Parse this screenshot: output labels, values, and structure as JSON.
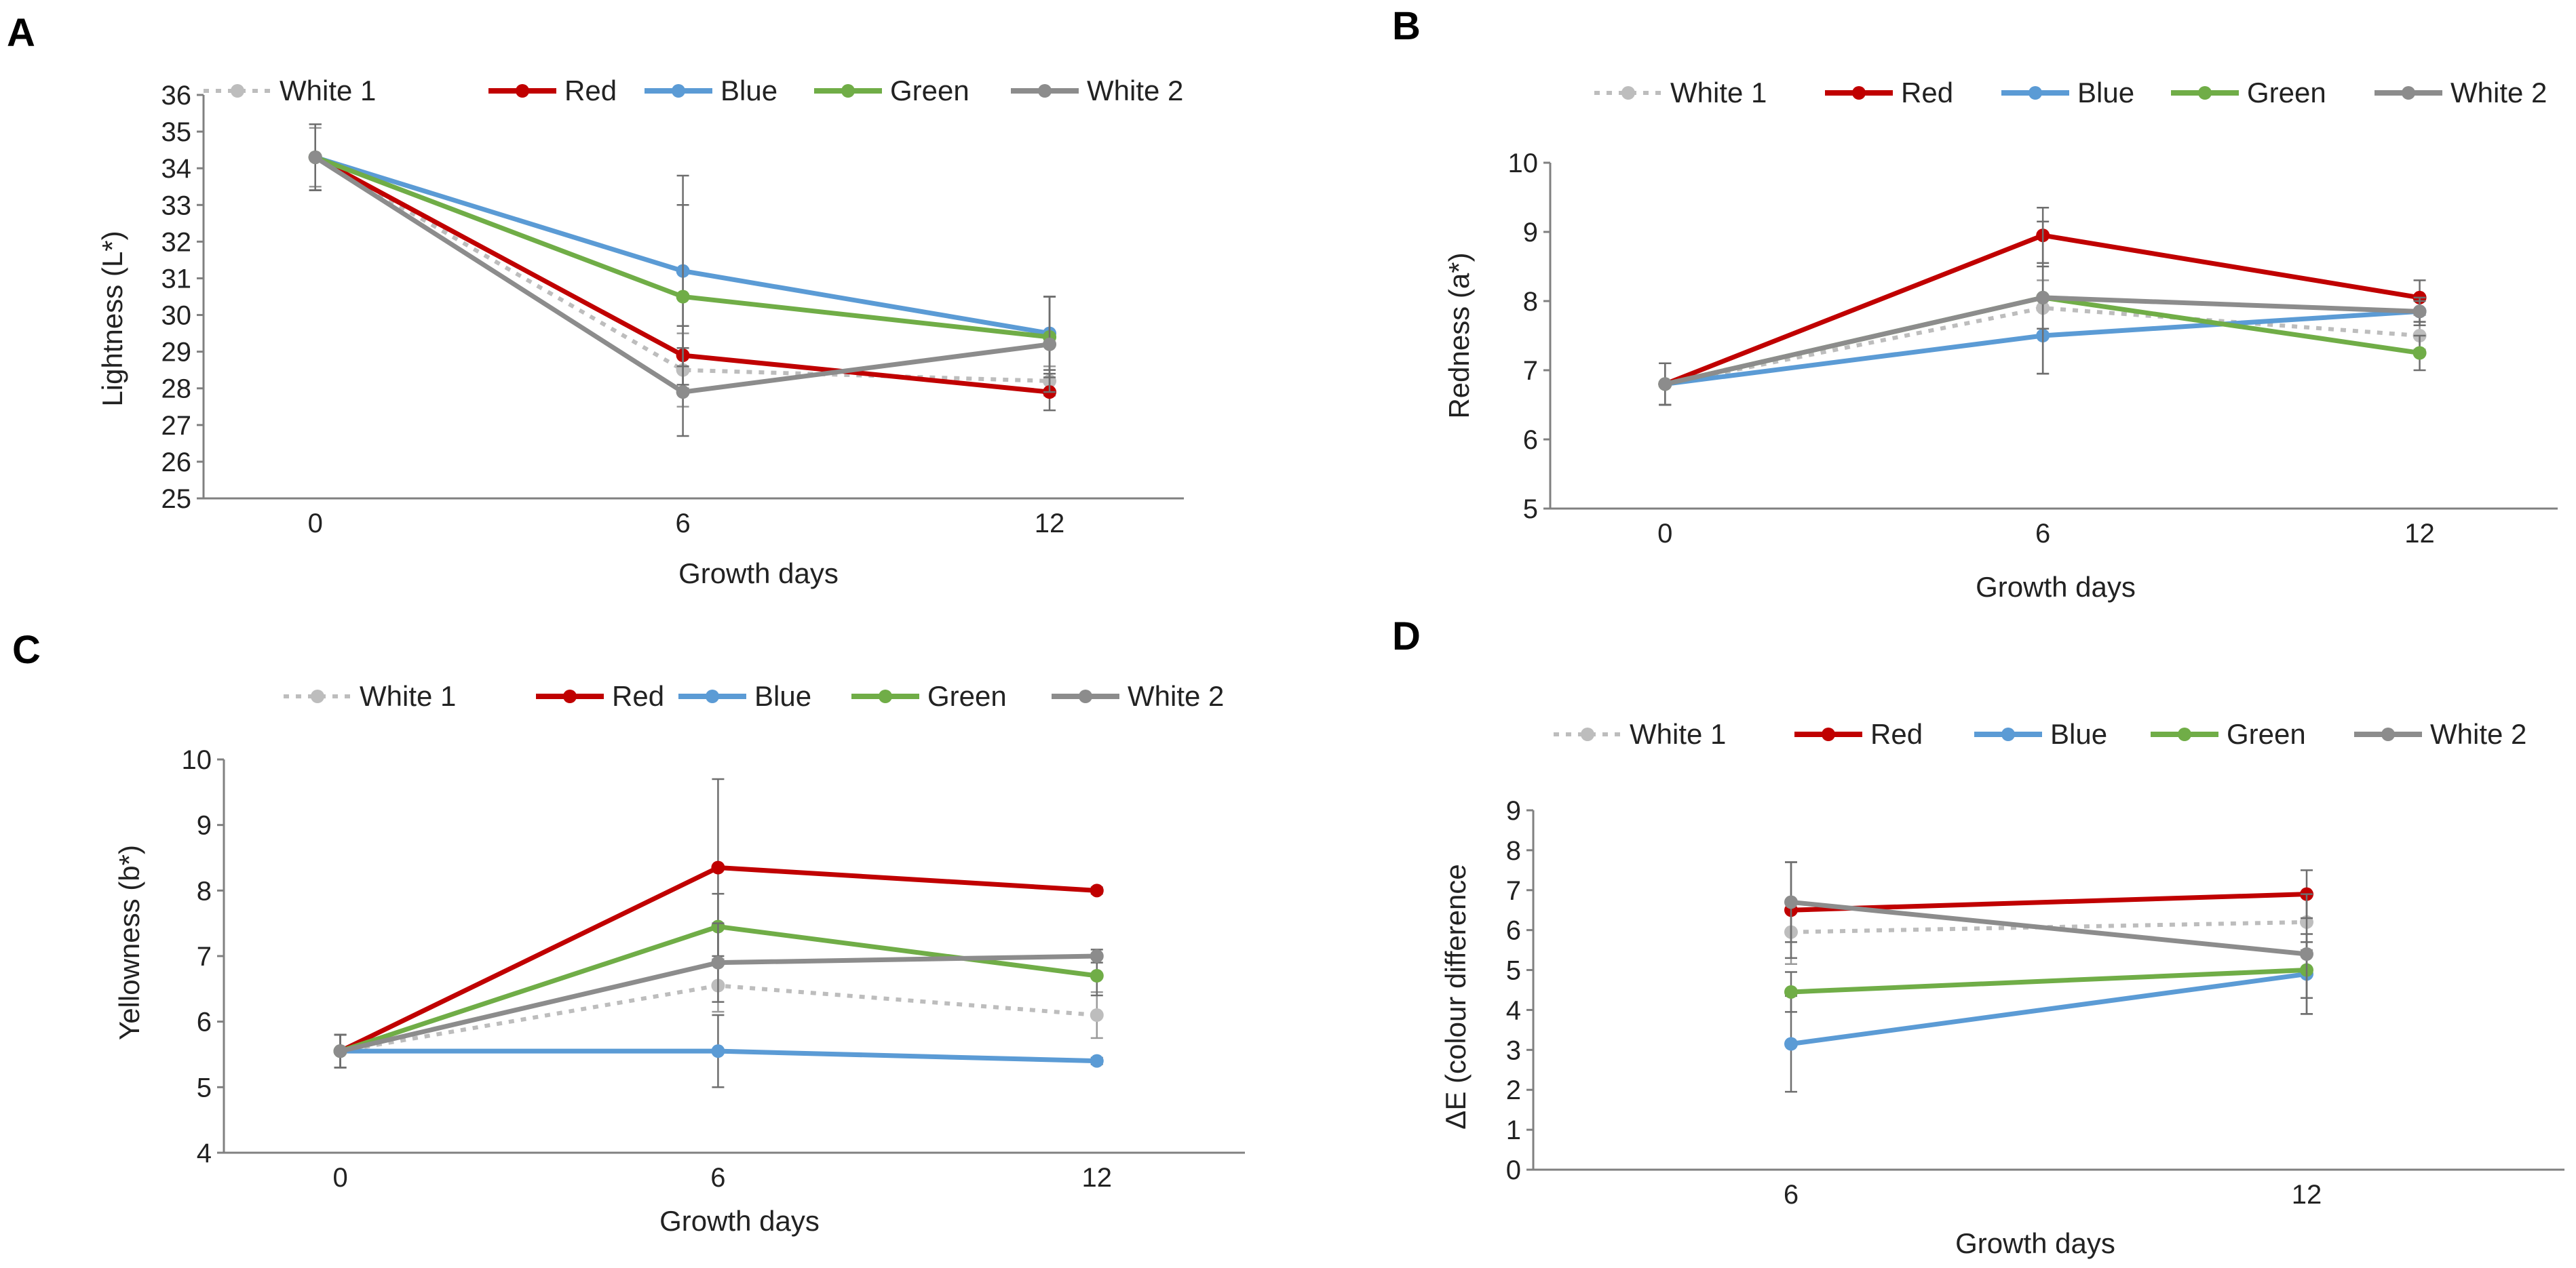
{
  "chart_data": [
    {
      "panel": "A",
      "type": "line",
      "xlabel": "Growth days",
      "ylabel": "Lightness (L*)",
      "categories": [
        "0",
        "6",
        "12"
      ],
      "ylim": [
        25,
        36
      ],
      "yticks": [
        25,
        26,
        27,
        28,
        29,
        30,
        31,
        32,
        33,
        34,
        35,
        36
      ],
      "series": [
        {
          "name": "White 1",
          "values": [
            34.3,
            28.5,
            28.2
          ],
          "errors": [
            0.8,
            1.0,
            0.4
          ]
        },
        {
          "name": "Red",
          "values": [
            34.3,
            28.9,
            27.9
          ],
          "errors": [
            0.9,
            0.8,
            0.5
          ]
        },
        {
          "name": "Blue",
          "values": [
            34.3,
            31.2,
            29.5
          ],
          "errors": [
            0.9,
            2.6,
            1.0
          ]
        },
        {
          "name": "Green",
          "values": [
            34.3,
            30.5,
            29.4
          ],
          "errors": [
            0.9,
            2.5,
            1.1
          ]
        },
        {
          "name": "White 2",
          "values": [
            34.3,
            27.9,
            29.2
          ],
          "errors": [
            0.9,
            1.2,
            1.3
          ]
        }
      ]
    },
    {
      "panel": "B",
      "type": "line",
      "xlabel": "Growth days",
      "ylabel": "Redness (a*)",
      "categories": [
        "0",
        "6",
        "12"
      ],
      "ylim": [
        5,
        10
      ],
      "yticks": [
        5,
        6,
        7,
        8,
        9,
        10
      ],
      "series": [
        {
          "name": "White 1",
          "values": [
            6.8,
            7.9,
            7.5
          ],
          "errors": [
            0.3,
            0.4,
            0.2
          ]
        },
        {
          "name": "Red",
          "values": [
            6.8,
            8.95,
            8.05
          ],
          "errors": [
            0.3,
            0.4,
            0.25
          ]
        },
        {
          "name": "Blue",
          "values": [
            6.8,
            7.5,
            7.85
          ],
          "errors": [
            0.3,
            0.55,
            0.15
          ]
        },
        {
          "name": "Green",
          "values": [
            6.8,
            8.05,
            7.25
          ],
          "errors": [
            0.3,
            0.45,
            0.25
          ]
        },
        {
          "name": "White 2",
          "values": [
            6.8,
            8.05,
            7.85
          ],
          "errors": [
            0.3,
            1.1,
            0.2
          ]
        }
      ]
    },
    {
      "panel": "C",
      "type": "line",
      "xlabel": "Growth days",
      "ylabel": "Yellowness (b*)",
      "categories": [
        "0",
        "6",
        "12"
      ],
      "ylim": [
        4,
        10
      ],
      "yticks": [
        4,
        5,
        6,
        7,
        8,
        9,
        10
      ],
      "series": [
        {
          "name": "White 1",
          "values": [
            5.55,
            6.55,
            6.1
          ],
          "errors": [
            0.25,
            0.4,
            0.35
          ]
        },
        {
          "name": "Red",
          "values": [
            5.55,
            8.35,
            8.0
          ],
          "errors": [
            0.25,
            1.35,
            0.05
          ]
        },
        {
          "name": "Blue",
          "values": [
            5.55,
            5.55,
            5.4
          ],
          "errors": [
            0.25,
            0.55,
            0.05
          ]
        },
        {
          "name": "Green",
          "values": [
            5.55,
            7.45,
            6.7
          ],
          "errors": [
            0.25,
            0.5,
            0.3
          ]
        },
        {
          "name": "White 2",
          "values": [
            5.55,
            6.9,
            7.0
          ],
          "errors": [
            0.25,
            0.6,
            0.1
          ]
        }
      ]
    },
    {
      "panel": "D",
      "type": "line",
      "xlabel": "Growth days",
      "ylabel": "ΔE (colour difference",
      "categories": [
        "6",
        "12"
      ],
      "ylim": [
        0,
        9
      ],
      "yticks": [
        0,
        1,
        2,
        3,
        4,
        5,
        6,
        7,
        8,
        9
      ],
      "series": [
        {
          "name": "White 1",
          "values": [
            5.95,
            6.2
          ],
          "errors": [
            0.8,
            0.7
          ]
        },
        {
          "name": "Red",
          "values": [
            6.5,
            6.9
          ],
          "errors": [
            1.2,
            0.6
          ]
        },
        {
          "name": "Blue",
          "values": [
            3.15,
            4.9
          ],
          "errors": [
            1.2,
            1.0
          ]
        },
        {
          "name": "Green",
          "values": [
            4.45,
            5.0
          ],
          "errors": [
            0.5,
            0.7
          ]
        },
        {
          "name": "White 2",
          "values": [
            6.7,
            5.4
          ],
          "errors": [
            1.0,
            1.5
          ]
        }
      ]
    }
  ],
  "series_styles": [
    {
      "name": "White 1",
      "color": "#bdbdbd",
      "dashed": true
    },
    {
      "name": "Red",
      "color": "#c00000",
      "dashed": false
    },
    {
      "name": "Blue",
      "color": "#5b9bd5",
      "dashed": false
    },
    {
      "name": "Green",
      "color": "#70ad47",
      "dashed": false
    },
    {
      "name": "White 2",
      "color": "#8c8c8c",
      "dashed": false
    }
  ]
}
